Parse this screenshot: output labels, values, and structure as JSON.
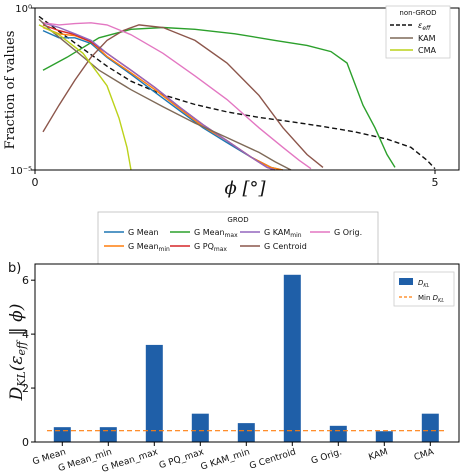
{
  "chart_data": [
    {
      "type": "line",
      "panel_label": "",
      "title": "",
      "xlabel": "ϕ [°]",
      "ylabel": "Fraction of values",
      "yscale": "log",
      "xlim": [
        0,
        5.3
      ],
      "ylim": [
        1e-05,
        1
      ],
      "x_ticks": [
        0,
        5
      ],
      "y_ticks": [
        {
          "value": 1,
          "label": "10⁰"
        },
        {
          "value": 1e-05,
          "label": "10⁻⁵"
        }
      ],
      "grid": false,
      "legends": [
        {
          "placement": "top-right",
          "title": "non-GROD",
          "entries": [
            {
              "label": "ε_eff",
              "color": "#111111",
              "style": "dashed"
            },
            {
              "label": "KAM",
              "color": "#7f6a58",
              "style": "solid"
            },
            {
              "label": "CMA",
              "color": "#bcd21a",
              "style": "solid"
            }
          ]
        },
        {
          "placement": "bottom-outside",
          "title": "GROD",
          "entries": [
            {
              "label": "G Mean",
              "color": "#1f77b4"
            },
            {
              "label": "G Mean_max",
              "color": "#2ca02c"
            },
            {
              "label": "G KAM_min",
              "color": "#9467bd"
            },
            {
              "label": "G Orig.",
              "color": "#e377c2"
            },
            {
              "label": "G Mean_min",
              "color": "#ff7f0e"
            },
            {
              "label": "G PQ_max",
              "color": "#d62728"
            },
            {
              "label": "G Centroid",
              "color": "#8c564b"
            }
          ]
        }
      ],
      "series": [
        {
          "name": "ε_eff",
          "color": "#111111",
          "style": "dashed",
          "x": [
            0.05,
            0.3,
            0.6,
            0.9,
            1.2,
            1.6,
            2.0,
            2.4,
            2.8,
            3.2,
            3.6,
            4.0,
            4.4,
            4.7,
            4.9,
            5.0
          ],
          "y": [
            0.55,
            0.19,
            0.055,
            0.016,
            0.0055,
            0.0021,
            0.00105,
            0.00062,
            0.00042,
            0.00031,
            0.00022,
            0.00015,
            9e-05,
            5e-05,
            2e-05,
            1.1e-05
          ]
        },
        {
          "name": "G Mean",
          "color": "#1f77b4",
          "style": "solid",
          "x": [
            0.1,
            0.3,
            0.5,
            0.7,
            0.9,
            1.2,
            1.5,
            1.8,
            2.1,
            2.4,
            2.7,
            2.95,
            3.1
          ],
          "y": [
            0.2,
            0.12,
            0.12,
            0.08,
            0.03,
            0.009,
            0.0025,
            0.0007,
            0.0002,
            7e-05,
            2.5e-05,
            1.2e-05,
            1e-05
          ]
        },
        {
          "name": "G Mean_min",
          "color": "#ff7f0e",
          "style": "solid",
          "x": [
            0.1,
            0.3,
            0.5,
            0.7,
            0.9,
            1.2,
            1.5,
            1.8,
            2.1,
            2.4,
            2.7,
            2.95,
            3.1
          ],
          "y": [
            0.25,
            0.16,
            0.14,
            0.09,
            0.032,
            0.01,
            0.003,
            0.0008,
            0.00022,
            8e-05,
            2.5e-05,
            1.2e-05,
            1e-05
          ]
        },
        {
          "name": "G Mean_max",
          "color": "#2ca02c",
          "style": "solid",
          "x": [
            0.1,
            0.4,
            0.8,
            1.2,
            1.6,
            2.0,
            2.5,
            3.0,
            3.4,
            3.7,
            3.9,
            4.1,
            4.25,
            4.4,
            4.5
          ],
          "y": [
            0.012,
            0.03,
            0.12,
            0.22,
            0.25,
            0.22,
            0.16,
            0.1,
            0.07,
            0.045,
            0.02,
            0.001,
            0.0002,
            3e-05,
            1.2e-05
          ]
        },
        {
          "name": "G PQ_max",
          "color": "#d62728",
          "style": "solid",
          "x": [
            0.1,
            0.3,
            0.5,
            0.7,
            0.9,
            1.2,
            1.5,
            1.8,
            2.1,
            2.4,
            2.7,
            2.9,
            3.0
          ],
          "y": [
            0.3,
            0.2,
            0.15,
            0.09,
            0.04,
            0.012,
            0.0035,
            0.0009,
            0.00025,
            8e-05,
            2.5e-05,
            1.2e-05,
            1e-05
          ]
        },
        {
          "name": "G KAM_min",
          "color": "#9467bd",
          "style": "solid",
          "x": [
            0.1,
            0.3,
            0.5,
            0.7,
            0.9,
            1.2,
            1.5,
            1.8,
            2.1,
            2.4,
            2.7,
            2.9,
            3.0
          ],
          "y": [
            0.35,
            0.25,
            0.16,
            0.1,
            0.04,
            0.012,
            0.0035,
            0.0009,
            0.00025,
            8e-05,
            2.5e-05,
            1.2e-05,
            1e-05
          ]
        },
        {
          "name": "G Centroid",
          "color": "#8c564b",
          "style": "solid",
          "x": [
            0.1,
            0.3,
            0.5,
            0.7,
            0.9,
            1.1,
            1.3,
            1.6,
            2.0,
            2.4,
            2.8,
            3.1,
            3.4,
            3.6
          ],
          "y": [
            0.00015,
            0.001,
            0.006,
            0.03,
            0.1,
            0.2,
            0.3,
            0.25,
            0.1,
            0.02,
            0.002,
            0.0002,
            3e-05,
            1.2e-05
          ]
        },
        {
          "name": "G Orig.",
          "color": "#e377c2",
          "style": "solid",
          "x": [
            0.1,
            0.3,
            0.5,
            0.7,
            0.9,
            1.2,
            1.6,
            2.0,
            2.4,
            2.8,
            3.1,
            3.3,
            3.45
          ],
          "y": [
            0.35,
            0.3,
            0.33,
            0.35,
            0.3,
            0.15,
            0.04,
            0.008,
            0.0015,
            0.0002,
            5e-05,
            2e-05,
            1.1e-05
          ]
        },
        {
          "name": "KAM",
          "color": "#7f6a58",
          "style": "solid",
          "x": [
            0.05,
            0.2,
            0.5,
            0.8,
            1.2,
            1.6,
            2.0,
            2.4,
            2.8,
            3.0,
            3.2
          ],
          "y": [
            0.45,
            0.2,
            0.05,
            0.012,
            0.003,
            0.0009,
            0.00028,
            0.0001,
            3.5e-05,
            1.8e-05,
            1e-05
          ]
        },
        {
          "name": "CMA",
          "color": "#bcd21a",
          "style": "solid",
          "x": [
            0.05,
            0.3,
            0.6,
            0.9,
            1.05,
            1.15,
            1.2
          ],
          "y": [
            0.3,
            0.15,
            0.04,
            0.004,
            0.0004,
            5e-05,
            1e-05
          ]
        }
      ]
    },
    {
      "type": "bar",
      "panel_label": "b)",
      "title": "",
      "xlabel": "",
      "ylabel": "D_KL(ε_eff ‖ ϕ)",
      "ylim": [
        0,
        6.6
      ],
      "y_ticks": [
        0,
        2,
        4,
        6
      ],
      "grid": false,
      "legend": {
        "placement": "top-right",
        "entries": [
          {
            "label": "D_KL",
            "color": "#1f5fa8"
          },
          {
            "label": "Min D_KL",
            "color": "#ff7f0e",
            "style": "dashed"
          }
        ]
      },
      "categories": [
        "G Mean",
        "G Mean_min",
        "G Mean_max",
        "G PQ_max",
        "G KAM_min",
        "G Centroid",
        "G Orig.",
        "KAM",
        "CMA"
      ],
      "values": [
        0.55,
        0.55,
        3.6,
        1.05,
        0.7,
        6.2,
        0.6,
        0.4,
        1.05
      ],
      "min_line": 0.42,
      "bar_color": "#1f5fa8",
      "min_line_color": "#ff7f0e"
    }
  ]
}
